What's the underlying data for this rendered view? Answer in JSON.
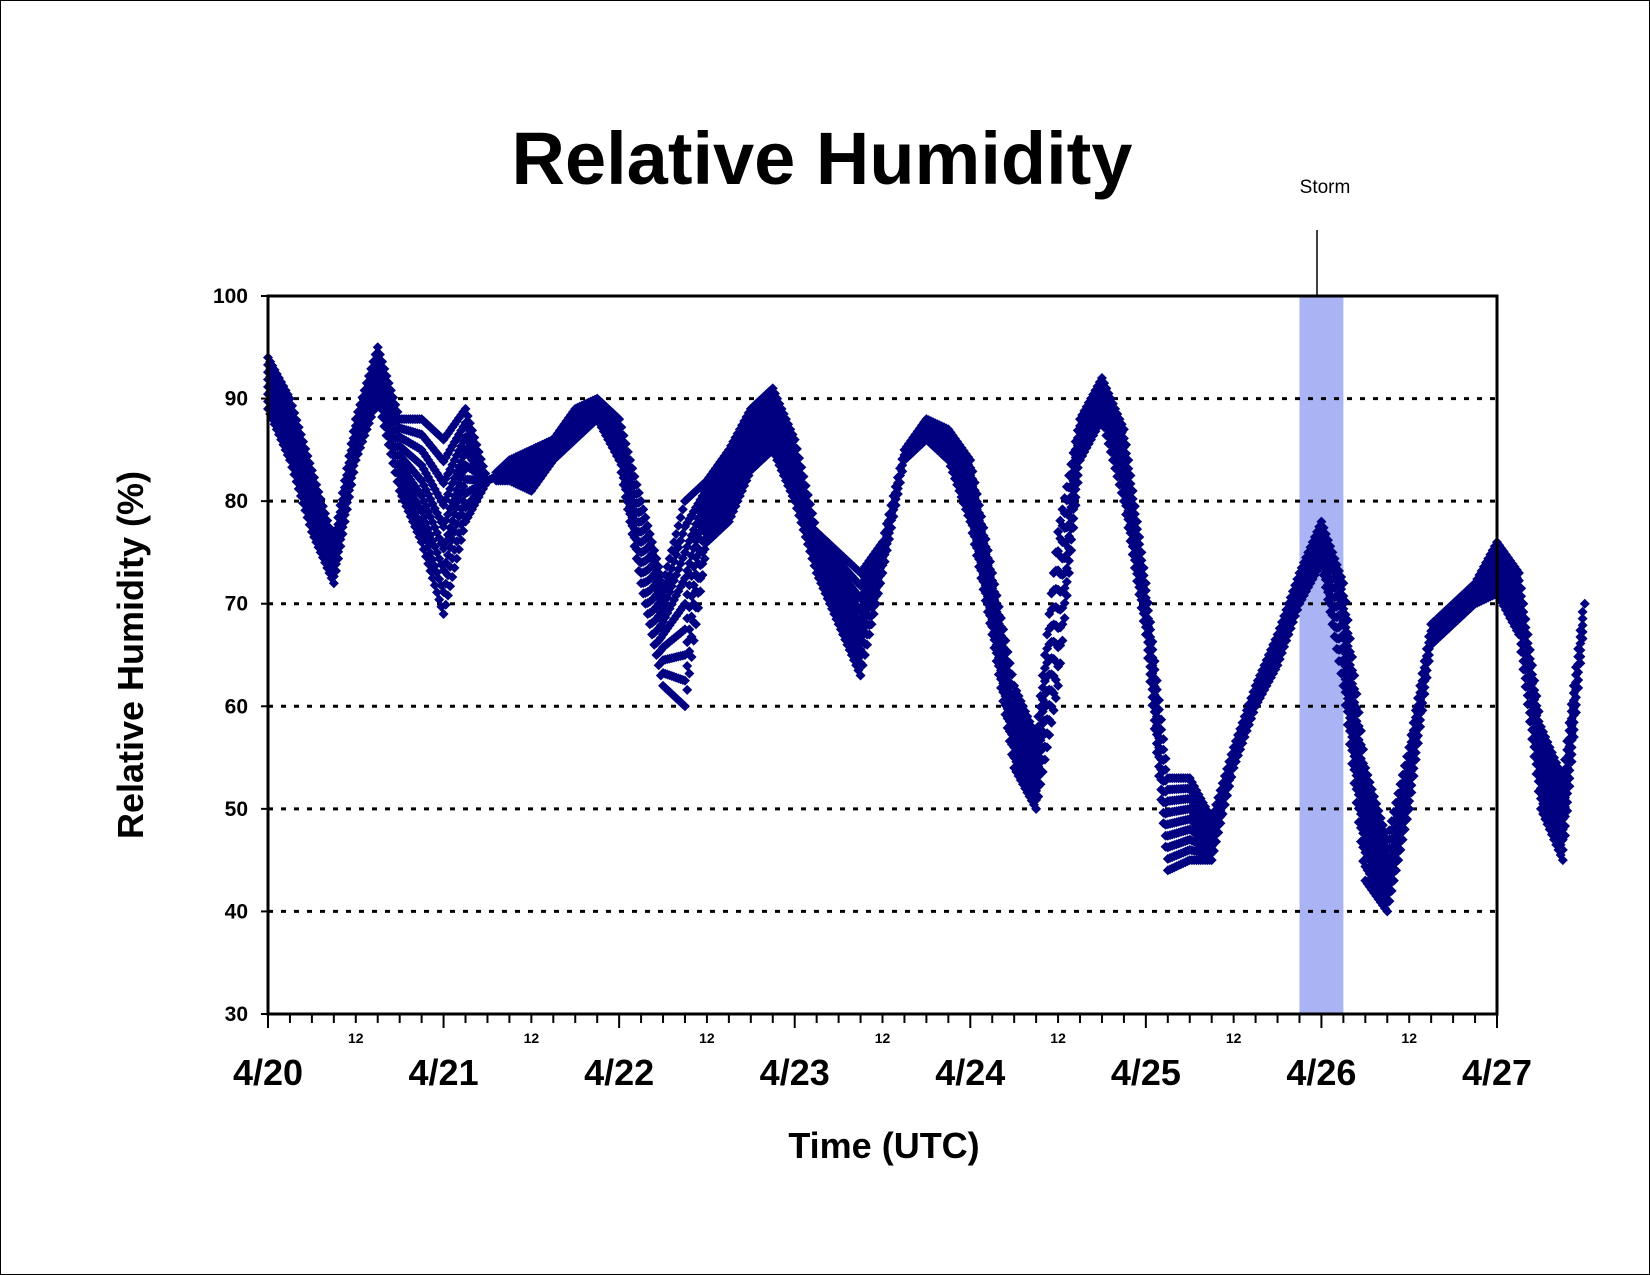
{
  "chart_data": {
    "type": "scatter",
    "title": "Relative Humidity",
    "xlabel": "Time (UTC)",
    "ylabel": "Relative Humidity (%)",
    "ylim": [
      30,
      100
    ],
    "yticks": [
      30,
      40,
      50,
      60,
      70,
      80,
      90,
      100
    ],
    "ygrid": [
      40,
      50,
      60,
      70,
      80,
      90
    ],
    "grid": "horizontal dotted",
    "xlim": [
      "2023-04-20T00:00",
      "2023-04-27T00:00"
    ],
    "xticks": [
      {
        "date": "2023-04-20T00:00",
        "label": "4/20"
      },
      {
        "date": "2023-04-21T00:00",
        "label": "4/21"
      },
      {
        "date": "2023-04-22T00:00",
        "label": "4/22"
      },
      {
        "date": "2023-04-23T00:00",
        "label": "4/23"
      },
      {
        "date": "2023-04-24T00:00",
        "label": "4/24"
      },
      {
        "date": "2023-04-25T00:00",
        "label": "4/25"
      },
      {
        "date": "2023-04-26T00:00",
        "label": "4/26"
      },
      {
        "date": "2023-04-27T00:00",
        "label": "4/27"
      }
    ],
    "minor_label": "12",
    "minor_tick_hours": 3,
    "marker": "diamond",
    "marker_color": "#000080",
    "series": [
      {
        "values_upper": [
          94,
          90,
          83,
          76,
          88,
          95,
          88,
          88,
          86,
          89,
          82,
          84,
          85,
          86,
          89,
          90,
          88,
          80,
          72,
          80,
          82,
          85,
          89,
          91,
          86,
          77,
          75,
          73,
          76,
          85,
          88,
          87,
          84,
          73,
          62,
          57,
          77,
          88,
          92,
          87,
          72,
          53,
          53,
          49,
          56,
          62,
          67,
          73,
          78,
          72,
          54,
          47,
          56,
          68,
          70,
          72,
          76,
          73,
          58,
          53,
          71
        ],
        "values_lower": [
          89,
          84,
          77,
          72,
          84,
          90,
          81,
          76,
          69,
          78,
          82,
          82,
          81,
          84,
          86,
          88,
          84,
          72,
          62,
          60,
          76,
          78,
          83,
          85,
          80,
          73,
          68,
          63,
          73,
          84,
          86,
          84,
          78,
          67,
          54,
          50,
          62,
          84,
          88,
          80,
          67,
          44,
          45,
          45,
          54,
          60,
          64,
          70,
          74,
          62,
          43,
          40,
          50,
          66,
          68,
          70,
          71,
          67,
          50,
          45,
          69
        ],
        "x_start": "2023-04-20T00:00",
        "x_step_hours": 3
      }
    ],
    "storm_band": {
      "start": "2023-04-25T21:00",
      "end": "2023-04-26T03:00",
      "color": "#aab4f5"
    },
    "annotation": {
      "text": "Storm",
      "x": "2023-04-26T00:00"
    }
  }
}
